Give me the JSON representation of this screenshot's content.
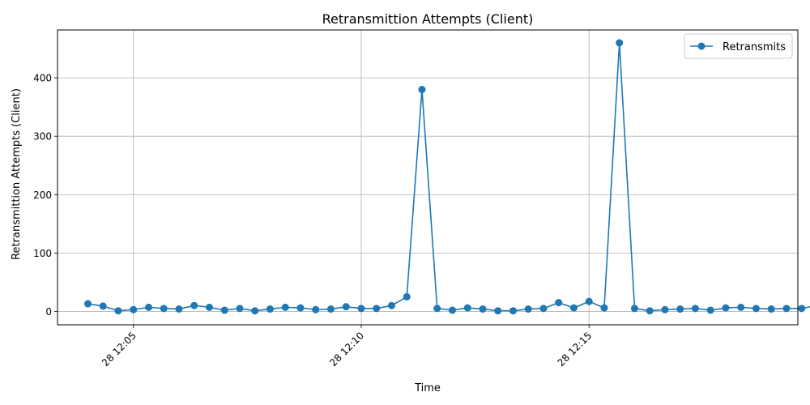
{
  "chart_data": {
    "type": "line",
    "title": "Retransmittion Attempts (Client)",
    "xlabel": "Time",
    "ylabel": "Retransmittion Attempts (Client)",
    "x_ticks": [
      "28 12:05",
      "28 12:10",
      "28 12:15"
    ],
    "y_ticks": [
      0,
      100,
      200,
      300,
      400
    ],
    "ylim": [
      -23,
      482
    ],
    "xlim": [
      "2024-xx-28 12:03:20",
      "2024-xx-28 12:19:35"
    ],
    "grid": true,
    "legend_position": "top-right",
    "series": [
      {
        "name": "Retransmits",
        "color": "#1f77b4",
        "marker": "circle",
        "x": [
          "12:04:00",
          "12:04:20",
          "12:04:40",
          "12:05:00",
          "12:05:20",
          "12:05:40",
          "12:06:00",
          "12:06:20",
          "12:06:40",
          "12:07:00",
          "12:07:20",
          "12:07:40",
          "12:08:00",
          "12:08:20",
          "12:08:40",
          "12:09:00",
          "12:09:20",
          "12:09:40",
          "12:10:00",
          "12:10:20",
          "12:10:40",
          "12:11:00",
          "12:11:20",
          "12:11:40",
          "12:12:00",
          "12:12:20",
          "12:12:40",
          "12:13:00",
          "12:13:20",
          "12:13:40",
          "12:14:00",
          "12:14:20",
          "12:14:40",
          "12:15:00",
          "12:15:20",
          "12:15:40",
          "12:16:00",
          "12:16:20",
          "12:16:40",
          "12:17:00",
          "12:17:20",
          "12:17:40",
          "12:18:00",
          "12:18:20",
          "12:18:40",
          "12:19:00",
          "12:19:20",
          "12:19:40",
          "12:20:00"
        ],
        "values": [
          13,
          9,
          1,
          3,
          7,
          5,
          4,
          10,
          7,
          2,
          5,
          1,
          4,
          7,
          6,
          3,
          4,
          8,
          5,
          5,
          10,
          25,
          380,
          5,
          2,
          6,
          4,
          1,
          1,
          4,
          5,
          15,
          6,
          17,
          6,
          460,
          5,
          1,
          3,
          4,
          5,
          2,
          6,
          7,
          5,
          4,
          5,
          5,
          10
        ]
      }
    ]
  }
}
